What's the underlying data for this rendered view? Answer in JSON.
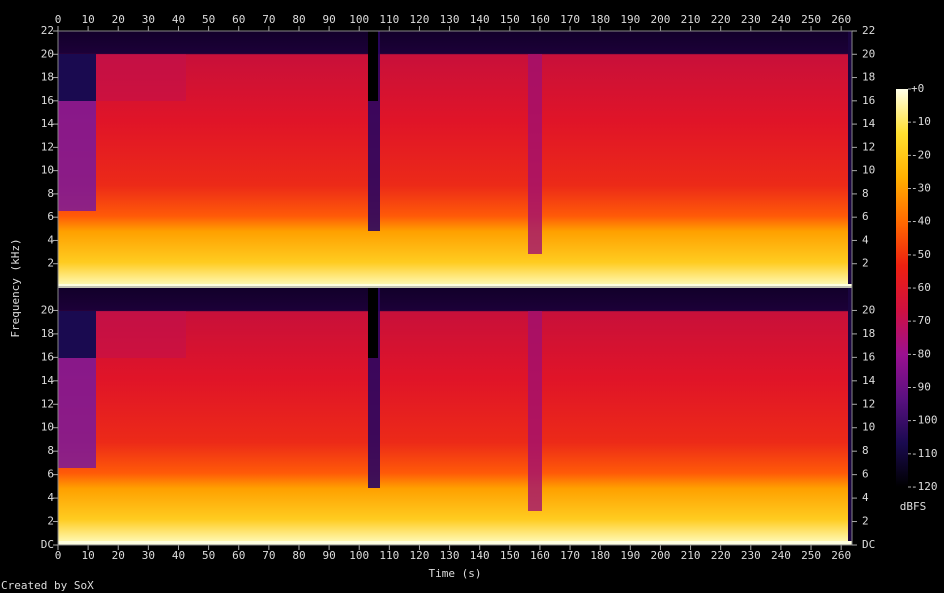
{
  "chart_data": {
    "type": "spectrogram",
    "xlabel": "Time (s)",
    "ylabel": "Frequency (kHz)",
    "credit": "Created by SoX",
    "xlim": [
      0,
      263.6
    ],
    "xticks": [
      0,
      10,
      20,
      30,
      40,
      50,
      60,
      70,
      80,
      90,
      100,
      110,
      120,
      130,
      140,
      150,
      160,
      170,
      180,
      190,
      200,
      210,
      220,
      230,
      240,
      250,
      260
    ],
    "panels": [
      {
        "ylim": [
          0,
          22
        ],
        "yticks": [
          2,
          4,
          6,
          8,
          10,
          12,
          14,
          16,
          18,
          20,
          22
        ]
      },
      {
        "ylim": [
          0,
          22
        ],
        "yticks": [
          {
            "value": 0,
            "label": "DC"
          },
          2,
          4,
          6,
          8,
          10,
          12,
          14,
          16,
          18,
          20
        ]
      }
    ],
    "colorbar": {
      "label": "dBFS",
      "lim": [
        -120,
        0
      ],
      "ticks": [
        {
          "value": 0,
          "label": "+0"
        },
        -10,
        -20,
        -30,
        -40,
        -50,
        -60,
        -70,
        -80,
        -90,
        -100,
        -110,
        -120
      ],
      "colors": [
        "#000000",
        "#1a0a50",
        "#5a1080",
        "#9a1090",
        "#d01040",
        "#ee2010",
        "#ff6a00",
        "#ffb000",
        "#ffe030",
        "#ffffe8"
      ]
    }
  }
}
